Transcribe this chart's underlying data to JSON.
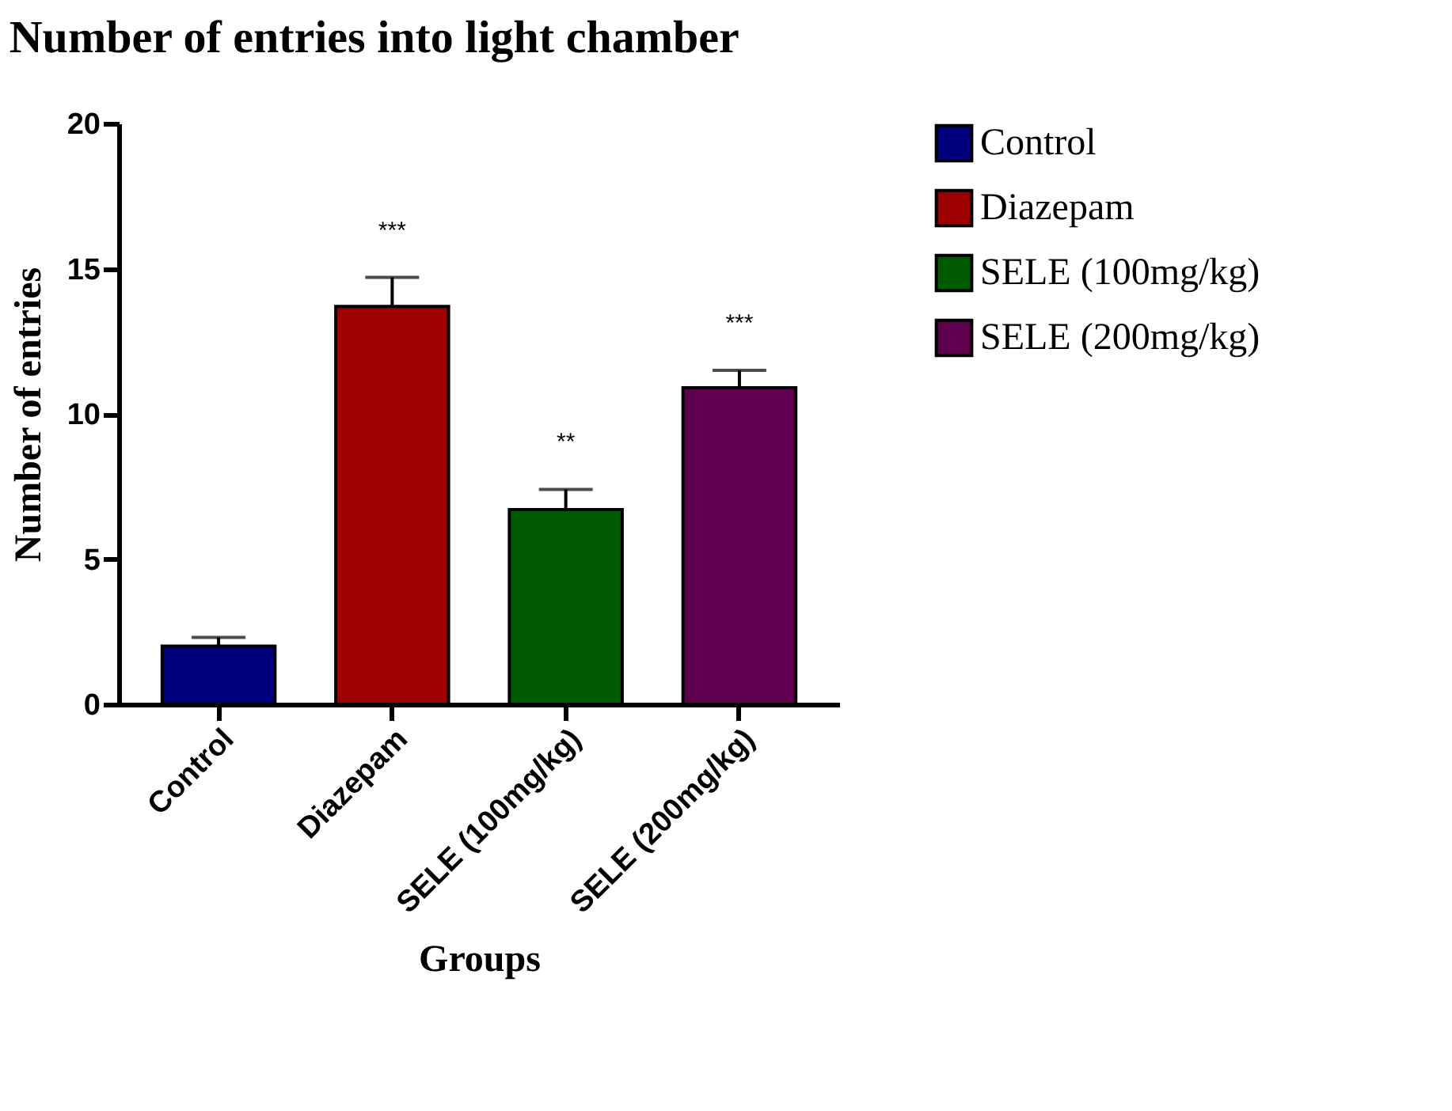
{
  "chart_data": {
    "type": "bar",
    "title": "Number of entries into light chamber",
    "xlabel": "Groups",
    "ylabel": "Number of entries",
    "categories": [
      "Control",
      "Diazepam",
      "SELE (100mg/kg)",
      "SELE (200mg/kg)"
    ],
    "series": [
      {
        "name": "Control",
        "color": "#00007f",
        "values": [
          2.0,
          null,
          null,
          null
        ],
        "errors": [
          [
            2.0,
            2.3
          ],
          null,
          null,
          null
        ]
      },
      {
        "name": "Diazepam",
        "color": "#9c0000",
        "values": [
          null,
          13.7,
          null,
          null
        ],
        "errors": [
          null,
          [
            13.7,
            14.7
          ],
          null,
          null
        ]
      },
      {
        "name": "SELE (100mg/kg)",
        "color": "#005a00",
        "values": [
          null,
          null,
          6.7,
          null
        ],
        "errors": [
          null,
          null,
          [
            6.7,
            7.4
          ],
          null
        ]
      },
      {
        "name": "SELE (200mg/kg)",
        "color": "#5f004f",
        "values": [
          null,
          null,
          null,
          10.9
        ],
        "errors": [
          null,
          null,
          null,
          [
            10.9,
            11.5
          ]
        ]
      }
    ],
    "ylim": [
      0,
      20
    ],
    "yticks": [
      0,
      5,
      10,
      15,
      20
    ],
    "grid": false,
    "legend": "top right",
    "annotations": [
      {
        "text": "***",
        "x": "Diazepam",
        "y": 14.7
      },
      {
        "text": "**",
        "x": "SELE (100mg/kg)",
        "y": 7.4
      },
      {
        "text": "***",
        "x": "SELE (200mg/kg)",
        "y": 11.5
      }
    ]
  }
}
